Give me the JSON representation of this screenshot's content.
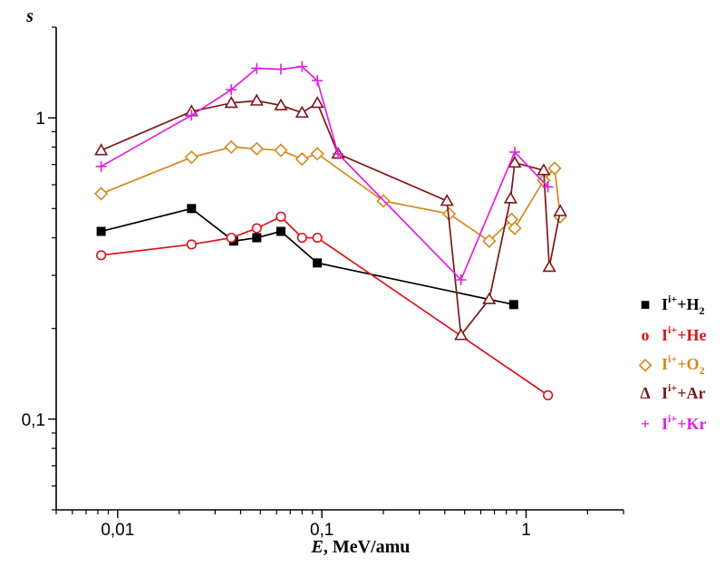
{
  "chart_data": {
    "type": "line",
    "x_scale": "log",
    "y_scale": "log",
    "xlabel": {
      "italic": "E",
      "rest": ", MeV/amu"
    },
    "ylabel": "s",
    "xlim": [
      0.005,
      3.0
    ],
    "ylim": [
      0.05,
      2.0
    ],
    "x_ticks": [
      {
        "value": 0.01,
        "label": "0,01"
      },
      {
        "value": 0.1,
        "label": "0,1"
      },
      {
        "value": 1,
        "label": "1"
      }
    ],
    "y_ticks": [
      {
        "value": 0.1,
        "label": "0,1"
      },
      {
        "value": 1,
        "label": "1"
      }
    ],
    "legend_position": "right",
    "series": [
      {
        "name": "I^i+ + H2",
        "legend": {
          "symbol": "■",
          "base": "I",
          "sup": "i+",
          "mid": "+H",
          "sub": "2",
          "tail": ""
        },
        "color": "#000000",
        "marker": "square",
        "x": [
          0.0083,
          0.023,
          0.037,
          0.048,
          0.063,
          0.095,
          0.87
        ],
        "y": [
          0.42,
          0.5,
          0.39,
          0.4,
          0.42,
          0.33,
          0.24
        ]
      },
      {
        "name": "I^i+ + He",
        "legend": {
          "symbol": "o",
          "base": "I",
          "sup": "i+",
          "mid": "+He",
          "sub": "",
          "tail": ""
        },
        "color": "#d8141b",
        "marker": "circle",
        "x": [
          0.0083,
          0.023,
          0.036,
          0.048,
          0.063,
          0.08,
          0.095,
          1.28
        ],
        "y": [
          0.35,
          0.38,
          0.4,
          0.43,
          0.47,
          0.4,
          0.4,
          0.12
        ]
      },
      {
        "name": "I^i+ + O2",
        "legend": {
          "symbol": "◇",
          "base": "I",
          "sup": "i+",
          "mid": "+O",
          "sub": "2",
          "tail": ""
        },
        "color": "#d4891c",
        "marker": "diamond",
        "x": [
          0.0083,
          0.023,
          0.036,
          0.048,
          0.063,
          0.08,
          0.095,
          0.2,
          0.42,
          0.66,
          0.85,
          0.88,
          1.22,
          1.38,
          1.47
        ],
        "y": [
          0.56,
          0.74,
          0.8,
          0.79,
          0.78,
          0.73,
          0.76,
          0.53,
          0.48,
          0.39,
          0.46,
          0.43,
          0.62,
          0.68,
          0.47
        ]
      },
      {
        "name": "I^i+ + Ar",
        "legend": {
          "symbol": "Δ",
          "base": "I",
          "sup": "i+",
          "mid": "+Ar",
          "sub": "",
          "tail": ""
        },
        "color": "#7a1818",
        "marker": "triangle",
        "x": [
          0.0083,
          0.023,
          0.036,
          0.048,
          0.063,
          0.08,
          0.095,
          0.12,
          0.41,
          0.48,
          0.66,
          0.84,
          0.88,
          1.22,
          1.3,
          1.47
        ],
        "y": [
          0.78,
          1.05,
          1.12,
          1.14,
          1.1,
          1.04,
          1.12,
          0.76,
          0.53,
          0.19,
          0.25,
          0.54,
          0.71,
          0.67,
          0.32,
          0.49
        ]
      },
      {
        "name": "I^i+ + Kr",
        "legend": {
          "symbol": "+",
          "base": "I",
          "sup": "i+",
          "mid": "+Kr",
          "sub": "",
          "tail": ""
        },
        "color": "#e020e0",
        "marker": "plus",
        "x": [
          0.0083,
          0.023,
          0.036,
          0.048,
          0.063,
          0.08,
          0.095,
          0.12,
          0.48,
          0.88,
          1.28
        ],
        "y": [
          0.69,
          1.02,
          1.24,
          1.46,
          1.45,
          1.48,
          1.33,
          0.76,
          0.29,
          0.77,
          0.59
        ]
      }
    ]
  }
}
